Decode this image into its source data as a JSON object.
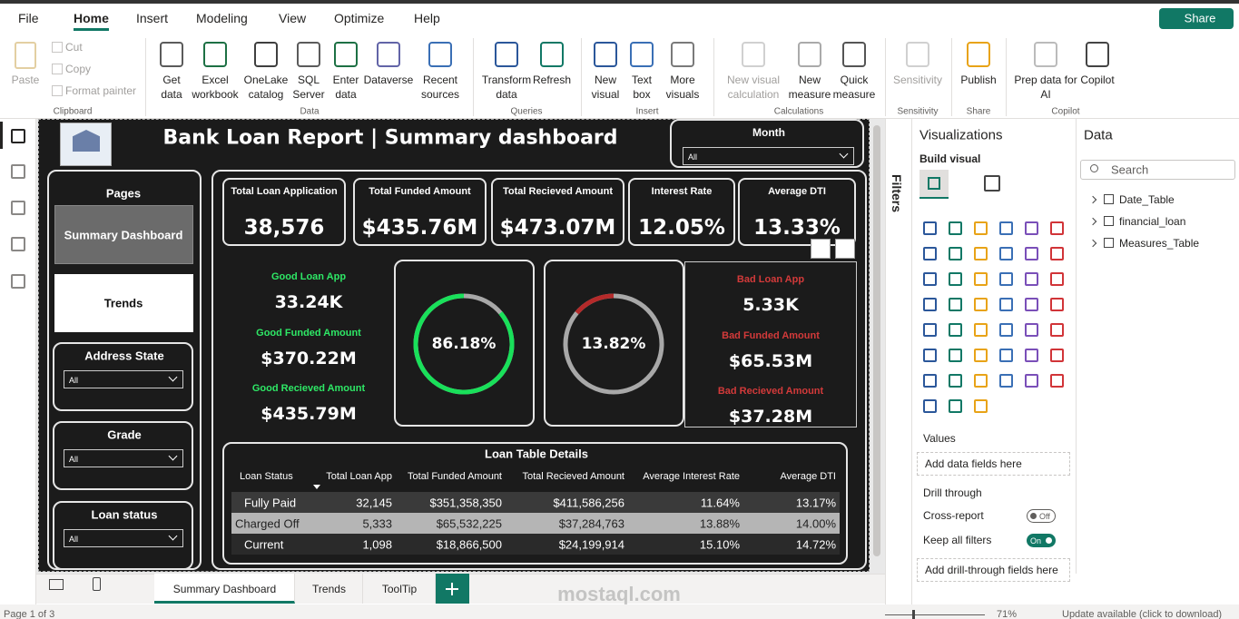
{
  "menu": {
    "items": [
      "File",
      "Home",
      "Insert",
      "Modeling",
      "View",
      "Optimize",
      "Help"
    ],
    "share": "Share"
  },
  "ribbon": {
    "groups": [
      {
        "label": "Clipboard",
        "items": [
          "Paste",
          "Cut",
          "Copy",
          "Format painter"
        ]
      },
      {
        "label": "Data",
        "items": [
          "Get data",
          "Excel workbook",
          "OneLake catalog",
          "SQL Server",
          "Enter data",
          "Dataverse",
          "Recent sources"
        ]
      },
      {
        "label": "Queries",
        "items": [
          "Transform data",
          "Refresh"
        ]
      },
      {
        "label": "Insert",
        "items": [
          "New visual",
          "Text box",
          "More visuals"
        ]
      },
      {
        "label": "Calculations",
        "items": [
          "New visual calculation",
          "New measure",
          "Quick measure"
        ]
      },
      {
        "label": "Sensitivity",
        "items": [
          "Sensitivity"
        ]
      },
      {
        "label": "Share",
        "items": [
          "Publish"
        ]
      },
      {
        "label": "Copilot",
        "items": [
          "Prep data for AI",
          "Copilot"
        ]
      }
    ]
  },
  "report": {
    "title": "Bank Loan Report | Summary dashboard",
    "month": {
      "label": "Month",
      "value": "All"
    },
    "pages": {
      "label": "Pages",
      "buttons": [
        "Summary Dashboard",
        "Trends"
      ]
    },
    "slicers": [
      {
        "label": "Address State",
        "value": "All"
      },
      {
        "label": "Grade",
        "value": "All"
      },
      {
        "label": "Loan status",
        "value": "All"
      }
    ],
    "kpis": [
      {
        "label": "Total Loan Application",
        "value": "38,576"
      },
      {
        "label": "Total Funded Amount",
        "value": "$435.76M"
      },
      {
        "label": "Total Recieved Amount",
        "value": "$473.07M"
      },
      {
        "label": "Interest Rate",
        "value": "12.05%"
      },
      {
        "label": "Average DTI",
        "value": "13.33%"
      }
    ],
    "good": {
      "items": [
        {
          "label": "Good Loan App",
          "value": "33.24K"
        },
        {
          "label": "Good Funded Amount",
          "value": "$370.22M"
        },
        {
          "label": "Good Recieved Amount",
          "value": "$435.79M"
        }
      ],
      "ratio": {
        "value": 86.18,
        "label": "86.18%"
      }
    },
    "bad": {
      "items": [
        {
          "label": "Bad Loan App",
          "value": "5.33K"
        },
        {
          "label": "Bad Funded Amount",
          "value": "$65.53M"
        },
        {
          "label": "Bad Recieved Amount",
          "value": "$37.28M"
        }
      ],
      "ratio": {
        "value": 13.82,
        "label": "13.82%"
      }
    },
    "table": {
      "title": "Loan Table Details",
      "columns": [
        "Loan Status",
        "Total Loan App",
        "Total Funded Amount",
        "Total Recieved Amount",
        "Average Interest Rate",
        "Average DTI"
      ],
      "rows": [
        [
          "Fully Paid",
          "32,145",
          "$351,358,350",
          "$411,586,256",
          "11.64%",
          "13.17%"
        ],
        [
          "Charged Off",
          "5,333",
          "$65,532,225",
          "$37,284,763",
          "13.88%",
          "14.00%"
        ],
        [
          "Current",
          "1,098",
          "$18,866,500",
          "$24,199,914",
          "15.10%",
          "14.72%"
        ]
      ]
    }
  },
  "filters": {
    "label": "Filters"
  },
  "visualizations": {
    "title": "Visualizations",
    "build": "Build visual",
    "values": "Values",
    "add_fields": "Add data fields here",
    "drill": "Drill through",
    "cross_report": "Cross-report",
    "off": "Off",
    "keep_filters": "Keep all filters",
    "on": "On",
    "add_drill": "Add drill-through fields here"
  },
  "data_pane": {
    "title": "Data",
    "search": "Search",
    "tables": [
      "Date_Table",
      "financial_loan",
      "Measures_Table"
    ]
  },
  "tabs": [
    "Summary Dashboard",
    "Trends",
    "ToolTip"
  ],
  "status": {
    "page": "Page 1 of 3",
    "zoom": "71%",
    "update": "Update available (click to download)"
  },
  "watermark": "mostaql.com"
}
